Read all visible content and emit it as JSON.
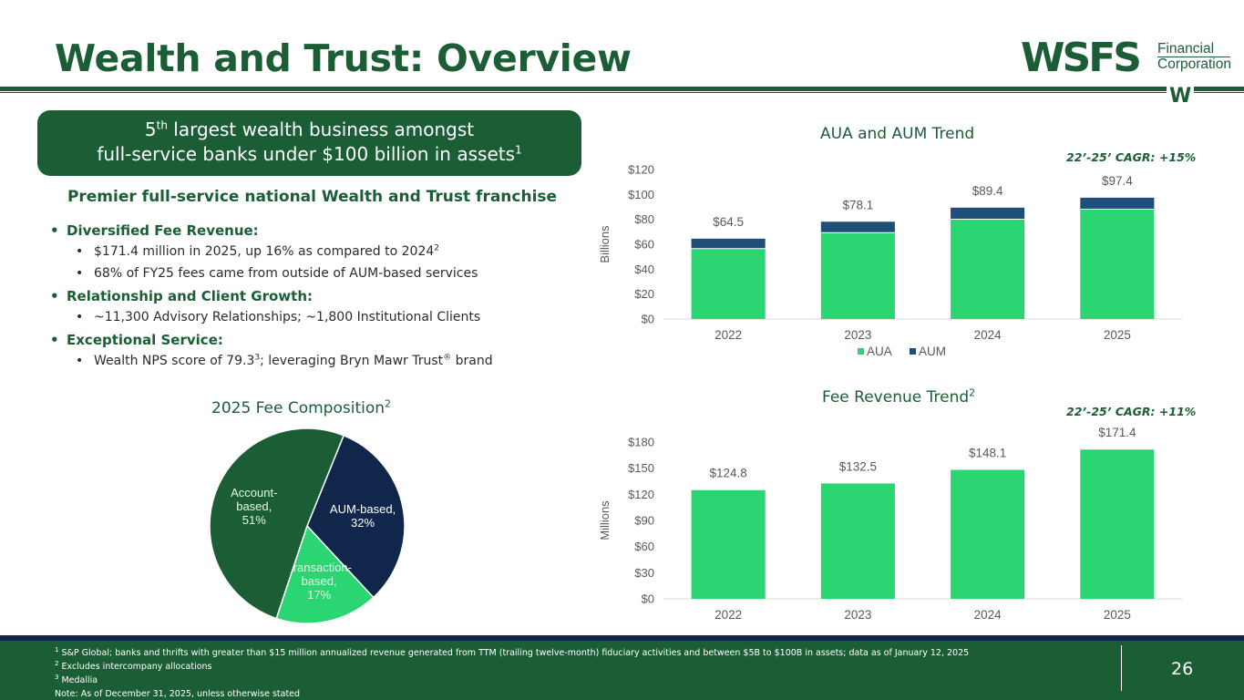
{
  "title": "Wealth and Trust: Overview",
  "logo": {
    "main": "WSFS",
    "line1": "Financial",
    "line2": "Corporation",
    "mark": "W"
  },
  "callout": {
    "line1_pre": "5",
    "line1_sup": "th",
    "line1_post": " largest wealth business amongst",
    "line2": "full-service banks under $100 billion in assets",
    "line2_sup": "1"
  },
  "subhead": "Premier full-service national Wealth and Trust franchise",
  "bullets": {
    "fee_heading": "Diversified Fee Revenue:",
    "fee_1": "$171.4 million in 2025, up 16% as compared to 2024",
    "fee_1_sup": "2",
    "fee_2": "68% of FY25 fees came from outside of AUM-based services",
    "growth_heading": "Relationship and Client Growth:",
    "growth_1": "~11,300 Advisory Relationships; ~1,800 Institutional Clients",
    "service_heading": "Exceptional Service:",
    "service_1a": "Wealth NPS score of 79.3",
    "service_1_sup": "3",
    "service_1b": "; leveraging Bryn Mawr Trust",
    "service_1_reg": "®",
    "service_1c": " brand"
  },
  "pie_title": "2025 Fee Composition",
  "pie_title_sup": "2",
  "aua_title": "AUA and AUM Trend",
  "aua_cagr": "22’-25’ CAGR: +15%",
  "fee_title": "Fee Revenue Trend",
  "fee_title_sup": "2",
  "fee_cagr": "22’-25’ CAGR: +11%",
  "chart_data": [
    {
      "type": "bar",
      "stacked": true,
      "title": "AUA and AUM Trend",
      "categories": [
        "2022",
        "2023",
        "2024",
        "2025"
      ],
      "series": [
        {
          "name": "AUA",
          "values": [
            56.5,
            69.3,
            80.1,
            88.2
          ]
        },
        {
          "name": "AUM",
          "values": [
            8.0,
            8.8,
            9.3,
            9.2
          ]
        }
      ],
      "totals": [
        64.5,
        78.1,
        89.4,
        97.4
      ],
      "total_labels": [
        "$64.5",
        "$78.1",
        "$89.4",
        "$97.4"
      ],
      "ylabel": "Billions",
      "ylim": [
        0,
        120
      ],
      "yticks": [
        0,
        20,
        40,
        60,
        80,
        100,
        120
      ],
      "ytick_labels": [
        "$0",
        "$20",
        "$40",
        "$60",
        "$80",
        "$100",
        "$120"
      ],
      "legend": [
        "AUA",
        "AUM"
      ],
      "colors": {
        "AUA": "#2ad572",
        "AUM": "#1f4e79"
      }
    },
    {
      "type": "bar",
      "title": "Fee Revenue Trend",
      "categories": [
        "2022",
        "2023",
        "2024",
        "2025"
      ],
      "values": [
        124.8,
        132.5,
        148.1,
        171.4
      ],
      "value_labels": [
        "$124.8",
        "$132.5",
        "$148.1",
        "$171.4"
      ],
      "ylabel": "Millions",
      "ylim": [
        0,
        180
      ],
      "yticks": [
        0,
        30,
        60,
        90,
        120,
        150,
        180
      ],
      "ytick_labels": [
        "$0",
        "$30",
        "$60",
        "$90",
        "$120",
        "$150",
        "$180"
      ],
      "color": "#2ad572"
    },
    {
      "type": "pie",
      "title": "2025 Fee Composition",
      "slices": [
        {
          "label": "AUM-based,",
          "pct_label": "32%",
          "value": 32,
          "color": "#10264a",
          "text_color": "#ffffff"
        },
        {
          "label": "Transaction-",
          "label2": "based,",
          "pct_label": "17%",
          "value": 17,
          "color": "#2ad572",
          "text_color": "#e6f5ea"
        },
        {
          "label": "Account-",
          "label2": "based,",
          "pct_label": "51%",
          "value": 51,
          "color": "#1b5e36",
          "text_color": "#e6f5ea"
        }
      ]
    }
  ],
  "footnotes": {
    "n1_sup": "1",
    "n1": " S&P Global; banks and thrifts with greater than $15 million annualized revenue generated from TTM (trailing twelve-month) fiduciary activities and between $5B to $100B in assets; data as of January 12, 2025",
    "n2_sup": "2",
    "n2": " Excludes intercompany allocations",
    "n3_sup": "3",
    "n3": " Medallia",
    "note": "Note: As of December 31, 2025, unless otherwise stated"
  },
  "page_number": "26"
}
